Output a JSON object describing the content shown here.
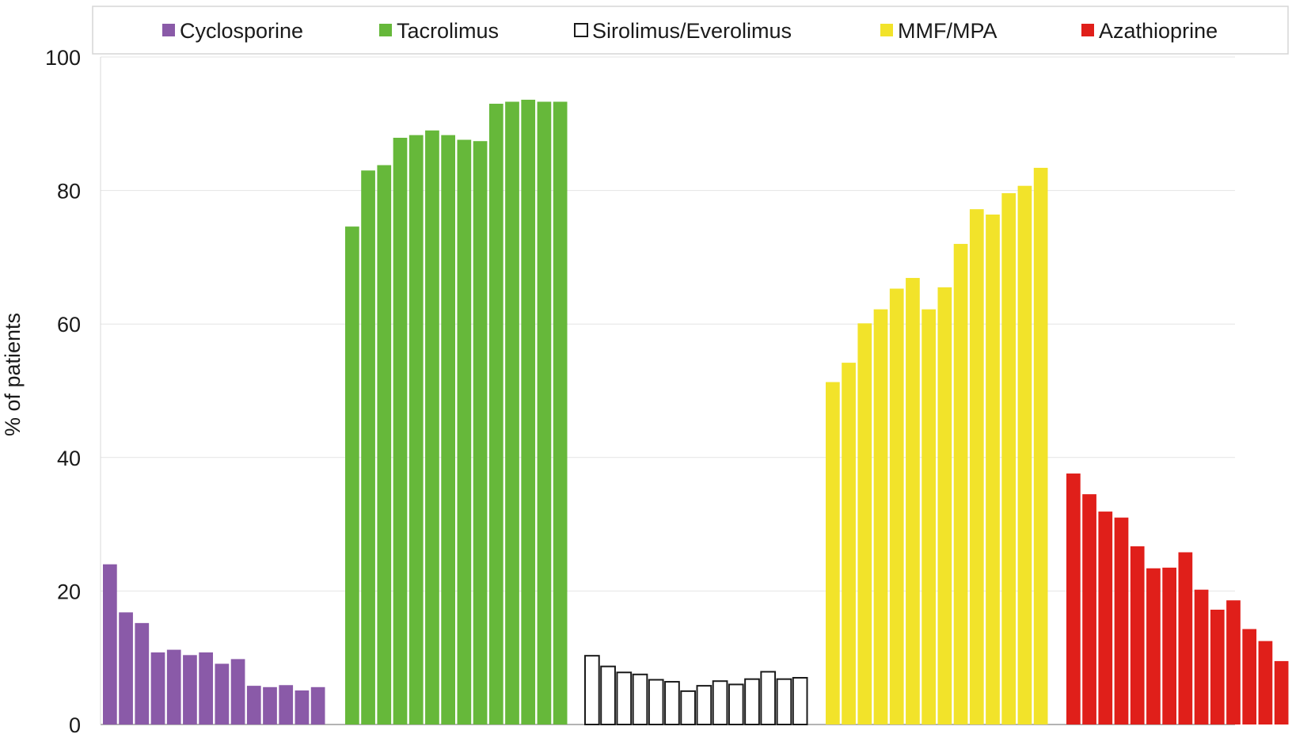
{
  "chart_data": {
    "type": "bar",
    "title": "",
    "xlabel": "",
    "ylabel": "% of patients",
    "ylim": [
      0,
      100
    ],
    "yticks": [
      0,
      20,
      40,
      60,
      80,
      100
    ],
    "grid": true,
    "legend_position": "top",
    "series": [
      {
        "name": "Cyclosporine",
        "color": "#8a5aa8",
        "values": [
          24.0,
          16.8,
          15.2,
          10.8,
          11.2,
          10.4,
          10.8,
          9.1,
          9.8,
          5.8,
          5.6,
          5.9,
          5.1,
          5.6
        ]
      },
      {
        "name": "Tacrolimus",
        "color": "#66b83a",
        "values": [
          74.6,
          83.0,
          83.8,
          87.9,
          88.3,
          89.0,
          88.3,
          87.6,
          87.4,
          93.0,
          93.3,
          93.6,
          93.3,
          93.3
        ]
      },
      {
        "name": "Sirolimus/Everolimus",
        "color": "#ffffff",
        "values": [
          10.3,
          8.7,
          7.8,
          7.5,
          6.7,
          6.4,
          5.0,
          5.8,
          6.5,
          6.0,
          6.8,
          7.9,
          6.8,
          7.0
        ]
      },
      {
        "name": "MMF/MPA",
        "color": "#f2e32a",
        "values": [
          51.3,
          54.2,
          60.1,
          62.2,
          65.3,
          66.9,
          62.2,
          65.5,
          72.0,
          77.2,
          76.4,
          79.6,
          80.7,
          83.4
        ]
      },
      {
        "name": "Azathioprine",
        "color": "#e01f1a",
        "values": [
          37.6,
          34.5,
          31.9,
          31.0,
          26.7,
          23.4,
          23.5,
          25.8,
          20.2,
          17.2,
          18.6,
          14.3,
          12.5,
          9.5
        ]
      }
    ]
  }
}
